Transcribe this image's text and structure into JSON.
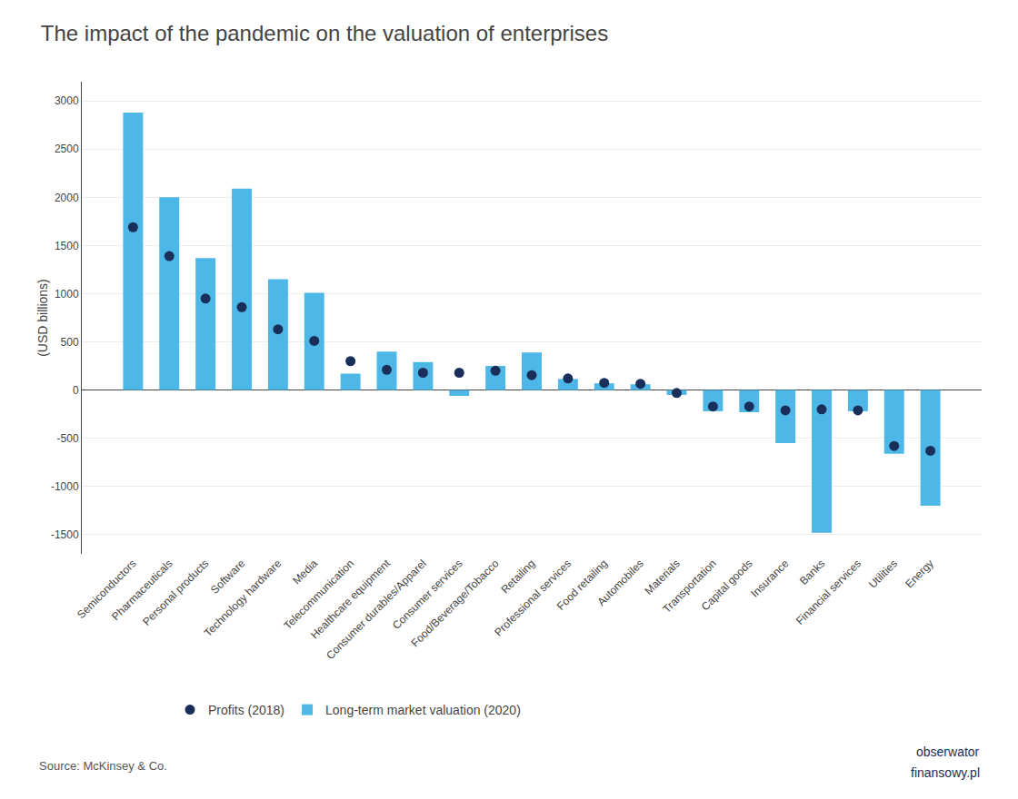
{
  "chart_data": {
    "type": "bar",
    "title": "The impact of the pandemic on the valuation of enterprises",
    "y_label": "(USD billions)",
    "categories": [
      "Semiconductors",
      "Pharmaceuticals",
      "Personal products",
      "Software",
      "Technology hardware",
      "Media",
      "Telecommunication",
      "Healthcare equipment",
      "Consumer durables/Apparel",
      "Consumer services",
      "Food/Beverage/Tobacco",
      "Retailing",
      "Professional services",
      "Food retailing",
      "Automobiles",
      "Materials",
      "Transportation",
      "Capital goods",
      "Insurance",
      "Banks",
      "Financial services",
      "Utilities",
      "Energy"
    ],
    "series": [
      {
        "name": "Long-term market valuation (2020)",
        "type": "bar",
        "color": "#4DB8E8",
        "values": [
          2880,
          2000,
          1370,
          2090,
          1150,
          1010,
          170,
          400,
          290,
          -60,
          250,
          390,
          115,
          70,
          60,
          -50,
          -220,
          -230,
          -550,
          -1480,
          -220,
          -660,
          -1200
        ]
      },
      {
        "name": "Profits (2018)",
        "type": "scatter",
        "marker": "circle",
        "color": "#1A2E5A",
        "values": [
          1690,
          1390,
          950,
          860,
          630,
          510,
          300,
          210,
          180,
          180,
          200,
          155,
          120,
          75,
          65,
          -30,
          -170,
          -170,
          -210,
          -200,
          -210,
          -580,
          -630
        ]
      }
    ],
    "ylim": [
      -1700,
      3200
    ],
    "yticks": [
      -1500,
      -1000,
      -500,
      0,
      500,
      1000,
      1500,
      2000,
      2500,
      3000
    ],
    "grid": true,
    "legend": "bottom",
    "annotations": [
      "Source: McKinsey & Co.",
      "obserwator",
      "finansowy.pl"
    ]
  }
}
